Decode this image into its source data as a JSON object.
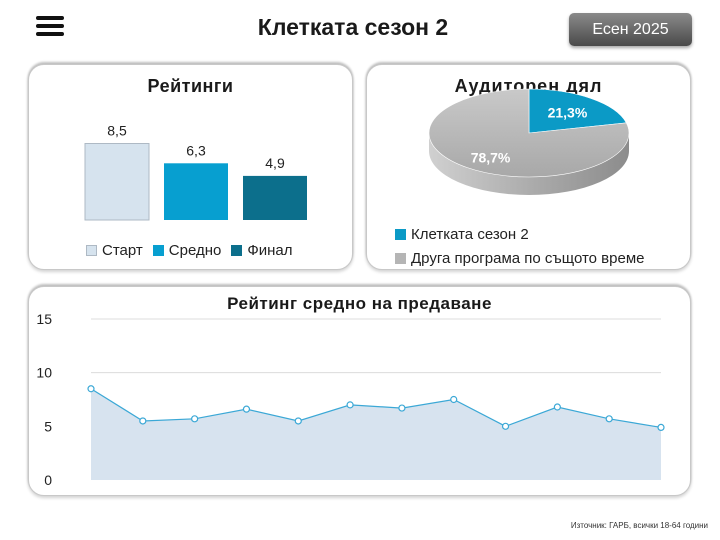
{
  "header": {
    "title": "Клетката сезон 2",
    "season_badge": "Есен 2025"
  },
  "ratings_card": {
    "title": "Рейтинги"
  },
  "share_card": {
    "title": "Аудиторен дял"
  },
  "episodes_card": {
    "title": "Рейтинг средно на предаване"
  },
  "source": "Източник: ГАРБ, всички 18-64 години",
  "colors": {
    "start": "#d6e3ee",
    "average": "#079fd0",
    "final": "#0c6f8c",
    "share_show": "#0b9ac6",
    "share_other": "#b5b5b5",
    "line": "#3ba8d6",
    "area": "#d7e3ef"
  },
  "chart_data": [
    {
      "type": "bar",
      "title": "Рейтинги",
      "categories": [
        "Старт",
        "Средно",
        "Финал"
      ],
      "values": [
        8.5,
        6.3,
        4.9
      ],
      "value_labels": [
        "8,5",
        "6,3",
        "4,9"
      ],
      "legend": [
        "Старт",
        "Средно",
        "Финал"
      ],
      "legend_position": "bottom",
      "ylim": [
        0,
        10
      ]
    },
    {
      "type": "pie",
      "title": "Аудиторен дял",
      "labels": [
        "Клетката сезон 2",
        "Друга програма по същото време"
      ],
      "values": [
        21.3,
        78.7
      ],
      "value_labels": [
        "21,3%",
        "78,7%"
      ],
      "legend_position": "bottom"
    },
    {
      "type": "area",
      "title": "Рейтинг средно на предаване",
      "y": [
        8.5,
        5.5,
        5.7,
        6.6,
        5.5,
        7.0,
        6.7,
        7.5,
        5.0,
        6.8,
        5.7,
        4.9
      ],
      "ylim": [
        0,
        15
      ],
      "yticks": [
        "0",
        "5",
        "10",
        "15"
      ],
      "grid": true
    }
  ]
}
